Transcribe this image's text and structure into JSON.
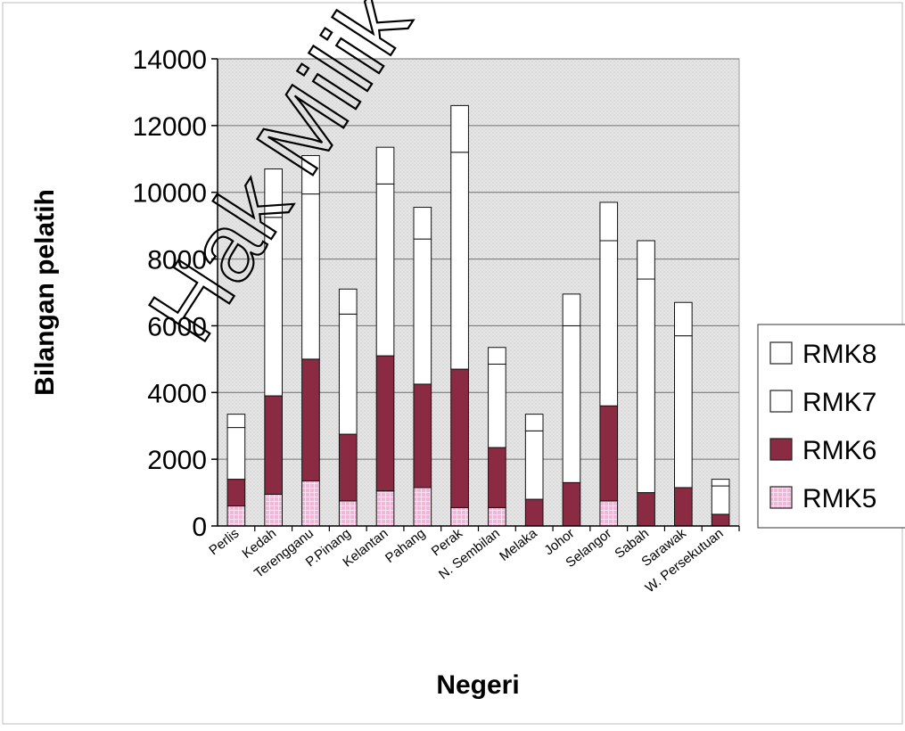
{
  "watermark": "Hak Milik M",
  "chart_data": {
    "type": "bar",
    "stacked": true,
    "xlabel": "Negeri",
    "ylabel": "Bilangan pelatih",
    "ylim": [
      0,
      14000
    ],
    "yticks": [
      0,
      2000,
      4000,
      6000,
      8000,
      10000,
      12000,
      14000
    ],
    "grid": true,
    "legend_position": "right",
    "categories": [
      "Perlis",
      "Kedah",
      "Terengganu",
      "P.Pinang",
      "Kelantan",
      "Pahang",
      "Perak",
      "N. Sembilan",
      "Melaka",
      "Johor",
      "Selangor",
      "Sabah",
      "Sarawak",
      "W. Persekutuan"
    ],
    "series": [
      {
        "name": "RMK5",
        "color": "#f0b8d8",
        "values": [
          600,
          950,
          1350,
          750,
          1050,
          1150,
          550,
          550,
          0,
          0,
          750,
          0,
          0,
          0
        ]
      },
      {
        "name": "RMK6",
        "color": "#8b2a43",
        "values": [
          800,
          2950,
          3650,
          2000,
          4050,
          3100,
          4150,
          1800,
          800,
          1300,
          2850,
          1000,
          1150,
          350
        ]
      },
      {
        "name": "RMK7",
        "color": "#ffffff",
        "values": [
          1550,
          5350,
          4950,
          3600,
          5150,
          4350,
          6500,
          2500,
          2050,
          4700,
          4950,
          6400,
          4550,
          850
        ]
      },
      {
        "name": "RMK8",
        "color": "#ffffff",
        "values": [
          400,
          1450,
          1150,
          750,
          1100,
          950,
          1400,
          500,
          500,
          950,
          1150,
          1150,
          1000,
          200
        ]
      }
    ]
  }
}
